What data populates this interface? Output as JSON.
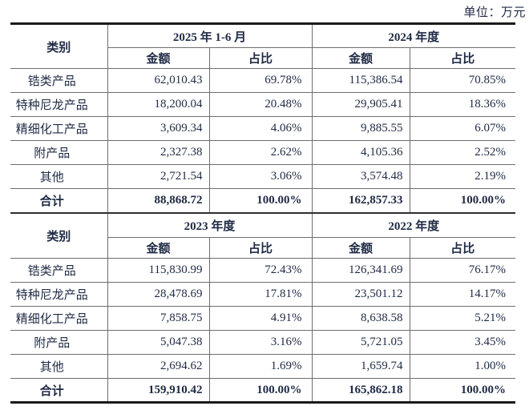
{
  "unit_label": "单位：万元",
  "colors": {
    "text": "#1f2a44",
    "border_thin": "#6e6e6e",
    "border_thick": "#1a1a1a",
    "background": "#ffffff"
  },
  "header": {
    "category": "类别",
    "amount": "金额",
    "ratio": "占比"
  },
  "tables": [
    {
      "periods": [
        "2025 年 1-6 月",
        "2024 年度"
      ],
      "rows": [
        {
          "category": "锆类产品",
          "cells": [
            "62,010.43",
            "69.78%",
            "115,386.54",
            "70.85%"
          ]
        },
        {
          "category": "特种尼龙产品",
          "cells": [
            "18,200.04",
            "20.48%",
            "29,905.41",
            "18.36%"
          ]
        },
        {
          "category": "精细化工产品",
          "cells": [
            "3,609.34",
            "4.06%",
            "9,885.55",
            "6.07%"
          ]
        },
        {
          "category": "附产品",
          "cells": [
            "2,327.38",
            "2.62%",
            "4,105.36",
            "2.52%"
          ]
        },
        {
          "category": "其他",
          "cells": [
            "2,721.54",
            "3.06%",
            "3,574.48",
            "2.19%"
          ]
        }
      ],
      "total": {
        "category": "合计",
        "cells": [
          "88,868.72",
          "100.00%",
          "162,857.33",
          "100.00%"
        ]
      }
    },
    {
      "periods": [
        "2023 年度",
        "2022 年度"
      ],
      "rows": [
        {
          "category": "锆类产品",
          "cells": [
            "115,830.99",
            "72.43%",
            "126,341.69",
            "76.17%"
          ]
        },
        {
          "category": "特种尼龙产品",
          "cells": [
            "28,478.69",
            "17.81%",
            "23,501.12",
            "14.17%"
          ]
        },
        {
          "category": "精细化工产品",
          "cells": [
            "7,858.75",
            "4.91%",
            "8,638.58",
            "5.21%"
          ]
        },
        {
          "category": "附产品",
          "cells": [
            "5,047.38",
            "3.16%",
            "5,721.05",
            "3.45%"
          ]
        },
        {
          "category": "其他",
          "cells": [
            "2,694.62",
            "1.69%",
            "1,659.74",
            "1.00%"
          ]
        }
      ],
      "total": {
        "category": "合计",
        "cells": [
          "159,910.42",
          "100.00%",
          "165,862.18",
          "100.00%"
        ]
      }
    }
  ]
}
